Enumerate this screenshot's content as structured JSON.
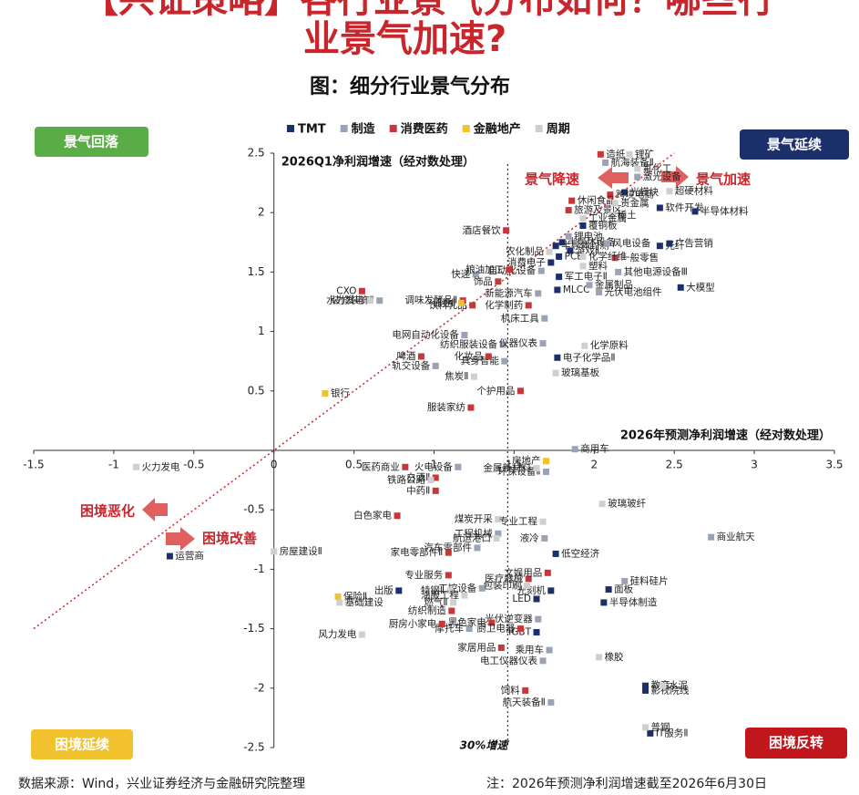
{
  "chart_data": {
    "type": "scatter",
    "title": "【兴证策略】各行业景气分布如何？哪些行",
    "title_line2": "业景气加速?",
    "subtitle": "图：细分行业景气分布",
    "y_label": "2026Q1净利润增速（经对数处理）",
    "x_label": "2026年预测净利润增速（经对数处理）",
    "quadrants": [
      "景气回落",
      "景气延续",
      "困境延续",
      "困境反转"
    ],
    "annotations": [
      "景气降速",
      "景气加速",
      "困境恶化",
      "困境改善"
    ],
    "vline_label": "30%增速",
    "vline_x": 1.46,
    "source": "数据来源：Wind，兴业证券经济与金融研究院整理",
    "note": "注：2026年预测净利润增速截至2026年6月30日",
    "xlim": [
      -1.5,
      3.5
    ],
    "ylim": [
      -2.5,
      2.5
    ],
    "xticks": [
      -1.5,
      -1,
      -0.5,
      0,
      0.5,
      1,
      1.5,
      2,
      2.5,
      3,
      3.5
    ],
    "yticks": [
      -2.5,
      -2,
      -1.5,
      -1,
      -0.5,
      0.5,
      1,
      1.5,
      2,
      2.5
    ],
    "diagonal": true,
    "series": [
      {
        "name": "TMT",
        "color": "#1b2f6b",
        "labels": [
          "光模块",
          "软件开发",
          "半导体材料",
          "覆铜板",
          "半导体设备",
          "半导体封测",
          "游戏Ⅱ",
          "光纤",
          "广告营销",
          "PCB",
          "消费电子",
          "军工电子Ⅱ",
          "MLCC",
          "大模型",
          "电子化学品Ⅱ",
          "低空经济",
          "出版",
          "光刻机",
          "面板",
          "LED",
          "半导体制造",
          "IGBT",
          "教育",
          "影视院线",
          "IT服务Ⅱ",
          "运营商"
        ],
        "x": [
          2.19,
          2.41,
          2.63,
          1.93,
          1.8,
          1.76,
          1.85,
          2.41,
          2.47,
          1.78,
          1.73,
          1.78,
          1.77,
          2.54,
          1.77,
          1.76,
          0.78,
          1.73,
          2.09,
          1.64,
          2.06,
          1.64,
          2.32,
          2.32,
          2.35,
          -0.65
        ],
        "values": [
          2.17,
          2.04,
          2.01,
          1.89,
          1.75,
          1.72,
          1.68,
          1.72,
          1.74,
          1.63,
          1.58,
          1.46,
          1.35,
          1.37,
          0.78,
          -0.87,
          -1.18,
          -1.18,
          -1.17,
          -1.25,
          -1.28,
          -1.53,
          -1.98,
          -2.02,
          -2.38,
          -0.89
        ]
      },
      {
        "name": "制造",
        "color": "#9aa3b5",
        "labels": [
          "航海装备Ⅱ",
          "激光设备",
          "锂电池",
          "风电设备",
          "快递",
          "自动化设备",
          "其他电源设备Ⅲ",
          "金属制品",
          "光伏电池组件",
          "新能源汽车",
          "机床工具",
          "装修装饰Ⅱ",
          "电网自动化设备",
          "纺织服装设备",
          "仪器仪表",
          "具身智能",
          "轨交设备",
          "商用车",
          "环保设备Ⅱ",
          "火电设备",
          "工程机械",
          "液冷",
          "汽车零部件",
          "商业航天",
          "硅料硅片",
          "工控设备",
          "光伏逆变器",
          "摩托车",
          "乘用车",
          "电工仪器仪表",
          "航天装备Ⅱ"
        ],
        "x": [
          2.07,
          2.27,
          1.84,
          2.08,
          1.26,
          1.67,
          2.15,
          1.97,
          2.03,
          1.65,
          1.69,
          0.66,
          1.19,
          1.43,
          1.68,
          1.44,
          1.01,
          1.88,
          1.7,
          1.15,
          1.4,
          1.69,
          1.27,
          2.73,
          2.19,
          1.3,
          1.65,
          1.22,
          1.72,
          1.68,
          1.73
        ],
        "values": [
          2.42,
          2.3,
          1.8,
          1.74,
          1.48,
          1.51,
          1.5,
          1.39,
          1.33,
          1.32,
          1.11,
          1.26,
          0.97,
          0.89,
          0.9,
          0.75,
          0.71,
          0.01,
          -0.18,
          -0.14,
          -0.7,
          -0.74,
          -0.82,
          -0.73,
          -1.1,
          -1.16,
          -1.42,
          -1.5,
          -1.68,
          -1.77,
          -2.12
        ]
      },
      {
        "name": "消费医药",
        "color": "#c8363a",
        "labels": [
          "造纸",
          "跨境电商",
          "休闲食品",
          "旅游及景区",
          "酒店餐饮",
          "一般零售",
          "粮油加工",
          "饰品",
          "调味发酵品Ⅱ",
          "化学制药",
          "饮料乳品",
          "CXO",
          "啤酒",
          "化妆品",
          "个护用品",
          "服装家纺",
          "医药商业",
          "白酒Ⅱ",
          "中药Ⅱ",
          "白色家电",
          "家电零部件Ⅱ",
          "专业服务",
          "医疗器械",
          "文娱用品",
          "纺织制造",
          "黑色家电",
          "厨房小家电",
          "厨卫电器",
          "家居用品",
          "饲料"
        ],
        "x": [
          2.04,
          2.1,
          1.86,
          1.84,
          1.45,
          2.13,
          1.47,
          1.4,
          1.18,
          1.59,
          1.24,
          0.55,
          0.92,
          1.34,
          1.54,
          1.23,
          0.82,
          1.01,
          1.01,
          0.77,
          1.09,
          1.09,
          1.59,
          1.71,
          1.11,
          1.36,
          1.05,
          1.54,
          1.42,
          1.57
        ],
        "values": [
          2.49,
          2.15,
          2.1,
          2.02,
          1.85,
          1.62,
          1.52,
          1.42,
          1.26,
          1.22,
          1.22,
          1.34,
          0.79,
          0.79,
          0.5,
          0.36,
          -0.14,
          -0.23,
          -0.34,
          -0.55,
          -0.86,
          -1.05,
          -1.08,
          -1.03,
          -1.35,
          -1.45,
          -1.46,
          -1.5,
          -1.66,
          -2.02
        ]
      },
      {
        "name": "金融地产",
        "color": "#f2c12e",
        "labels": [
          "证券Ⅱ",
          "银行",
          "房地产",
          "保险Ⅱ"
        ],
        "x": [
          1.17,
          0.32,
          1.7,
          0.4
        ],
        "values": [
          1.24,
          0.48,
          -0.09,
          -1.23
        ]
      },
      {
        "name": "周期",
        "color": "#cfcfcf",
        "labels": [
          "锂矿",
          "氟化工",
          "超硬材料",
          "贵金属",
          "稀土",
          "工业金属",
          "农化制品",
          "化学纤维",
          "塑料",
          "水力发电",
          "化学原料",
          "玻璃基板",
          "焦炭Ⅱ",
          "金属新材料",
          "铁路公路",
          "玻璃玻纤",
          "煤炭开采",
          "专业工程",
          "航运港口",
          "特钢Ⅱ",
          "包装印刷",
          "油服工程",
          "燃气Ⅱ",
          "橡胶",
          "水泥",
          "普钢",
          "火力发电",
          "房屋建设Ⅱ",
          "基础建设",
          "风力发电"
        ],
        "x": [
          2.22,
          2.27,
          2.47,
          2.13,
          2.11,
          1.93,
          1.72,
          1.93,
          1.93,
          0.6,
          1.94,
          1.76,
          1.25,
          1.64,
          0.98,
          2.05,
          1.4,
          1.68,
          1.39,
          1.1,
          1.58,
          1.19,
          1.12,
          2.03,
          2.43,
          2.32,
          -0.86,
          0.0,
          0.41,
          0.55
        ],
        "values": [
          2.49,
          2.37,
          2.18,
          2.08,
          1.98,
          1.95,
          1.67,
          1.63,
          1.55,
          1.26,
          0.88,
          0.65,
          0.62,
          -0.15,
          -0.25,
          -0.45,
          -0.58,
          -0.6,
          -0.74,
          -1.18,
          -1.14,
          -1.22,
          -1.28,
          -1.74,
          -1.98,
          -2.33,
          -0.14,
          -0.85,
          -1.28,
          -1.55
        ]
      }
    ]
  }
}
